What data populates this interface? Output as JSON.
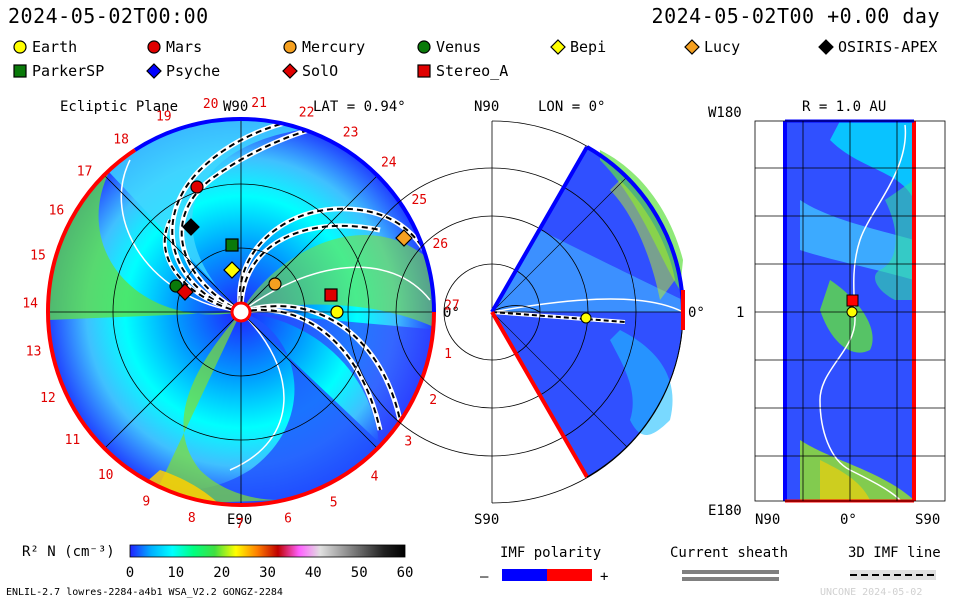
{
  "header": {
    "time_left": "2024-05-02T00:00",
    "time_right": "2024-05-02T00 +0.00 day"
  },
  "bodies": [
    {
      "name": "Earth",
      "marker": "circle",
      "color": "#ffff00"
    },
    {
      "name": "Mars",
      "marker": "circle",
      "color": "#e00000"
    },
    {
      "name": "Mercury",
      "marker": "circle",
      "color": "#f5a020"
    },
    {
      "name": "Venus",
      "marker": "circle",
      "color": "#0a7a0a"
    },
    {
      "name": "Bepi",
      "marker": "diamond",
      "color": "#ffff00"
    },
    {
      "name": "Lucy",
      "marker": "diamond",
      "color": "#f5a020"
    },
    {
      "name": "OSIRIS-APEX",
      "marker": "diamond",
      "color": "#000000"
    },
    {
      "name": "ParkerSP",
      "marker": "square",
      "color": "#0a7a0a"
    },
    {
      "name": "Psyche",
      "marker": "diamond",
      "color": "#0000ff"
    },
    {
      "name": "SolO",
      "marker": "diamond",
      "color": "#e00000"
    },
    {
      "name": "Stereo_A",
      "marker": "square",
      "color": "#e00000"
    }
  ],
  "ecliptic": {
    "title": "Ecliptic Plane",
    "lat_label": "LAT = 0.94°",
    "top_label": "W90",
    "bottom_label": "E90",
    "right_label": "0°",
    "carrington_labels": [
      "1",
      "2",
      "3",
      "4",
      "5",
      "6",
      "7",
      "8",
      "9",
      "10",
      "11",
      "12",
      "13",
      "14",
      "15",
      "16",
      "17",
      "18",
      "19",
      "20",
      "21",
      "22",
      "23",
      "24",
      "25",
      "26",
      "27"
    ]
  },
  "meridional": {
    "title": "LON = 0°",
    "top_label": "N90",
    "bottom_label": "S90",
    "right_label": "0°"
  },
  "rprofile": {
    "title": "R = 1.0 AU",
    "y_top": "W180",
    "y_mid": "1",
    "y_bottom": "E180",
    "x_left": "N90",
    "x_mid": "0°",
    "x_right": "S90"
  },
  "colorbar": {
    "label": "R² N (cm⁻³)",
    "ticks": [
      "0",
      "10",
      "20",
      "30",
      "40",
      "50",
      "60"
    ],
    "stops": [
      "#2020ff",
      "#00b0ff",
      "#00ffff",
      "#00ff80",
      "#40e040",
      "#ffff00",
      "#ff8000",
      "#c00000",
      "#ff60ff",
      "#e0e0e0",
      "#a0a0a0",
      "#606060",
      "#202020",
      "#000000"
    ]
  },
  "imf": {
    "label": "IMF polarity",
    "minus": "–",
    "plus": "+",
    "neg_color": "#0000ff",
    "pos_color": "#ff0000"
  },
  "sheath": {
    "label": "Current sheath"
  },
  "imfline": {
    "label": "3D IMF line"
  },
  "footer": {
    "left": "ENLIL-2.7 lowres-2284-a4b1 WSA_V2.2 GONGZ-2284",
    "right": "UNCONE  2024-05-02"
  },
  "chart_data": {
    "type": "heatmap",
    "title": "",
    "colorbar_range": [
      0,
      60
    ],
    "colorbar_ticks": [
      0,
      10,
      20,
      30,
      40,
      50,
      60
    ],
    "carrington_ticks": [
      1,
      2,
      3,
      4,
      5,
      6,
      7,
      8,
      9,
      10,
      11,
      12,
      13,
      14,
      15,
      16,
      17,
      18,
      19,
      20,
      21,
      22,
      23,
      24,
      25,
      26,
      27
    ]
  }
}
